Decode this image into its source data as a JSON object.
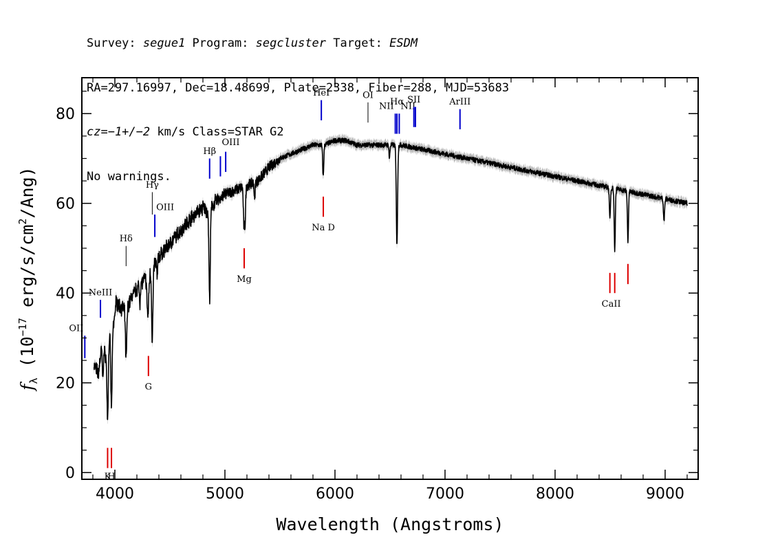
{
  "header": {
    "line1": [
      {
        "text": "Survey: ",
        "italic": false
      },
      {
        "text": "segue1",
        "italic": true
      },
      {
        "text": " Program: ",
        "italic": false
      },
      {
        "text": "segcluster",
        "italic": true
      },
      {
        "text": " Target: ",
        "italic": false
      },
      {
        "text": "ESDM",
        "italic": true
      }
    ],
    "line2": "RA=297.16997, Dec=18.48699, Plate=2338, Fiber=288, MJD=53683",
    "line3": [
      {
        "text": "cz=−1+/−2",
        "italic": true
      },
      {
        "text": " km/s Class=STAR G2",
        "italic": false
      }
    ],
    "line4": "No warnings."
  },
  "chart_data": {
    "type": "line",
    "xlabel": "Wavelength (Angstroms)",
    "ylabel": "f_λ (10^-17 erg/s/cm^2/Ang)",
    "ylabel_parts": {
      "f": "f",
      "sub": "λ",
      "pre": " (10",
      "sup1": "−17",
      "mid": " erg/s/cm",
      "sup2": "2",
      "post": "/Ang)"
    },
    "xlim": [
      3700,
      9300
    ],
    "ylim": [
      -1.5,
      88
    ],
    "xticks": [
      4000,
      5000,
      6000,
      7000,
      8000,
      9000
    ],
    "yticks": [
      0,
      20,
      40,
      60,
      80
    ],
    "grid": false,
    "colors": {
      "spectrum": "#000000",
      "error": "#b4b4b4",
      "emission": "#0000cc",
      "absorption": "#dd0000"
    },
    "spectrum_anchors": {
      "x": [
        3810,
        3850,
        3880,
        3900,
        3920,
        3950,
        3990,
        4010,
        4050,
        4100,
        4150,
        4200,
        4300,
        4400,
        4500,
        4600,
        4700,
        4800,
        4850,
        4900,
        5000,
        5100,
        5200,
        5300,
        5400,
        5500,
        5600,
        5700,
        5800,
        5900,
        6000,
        6100,
        6200,
        6400,
        6600,
        6800,
        7000,
        7200,
        7400,
        7600,
        7800,
        8000,
        8200,
        8400,
        8600,
        8800,
        9000,
        9200
      ],
      "y": [
        24,
        22,
        28,
        27,
        26,
        30,
        33,
        38,
        37,
        36,
        39,
        41,
        44,
        48,
        51,
        54,
        57,
        59,
        58,
        60,
        62,
        63,
        64,
        65,
        68,
        70,
        71,
        72,
        73,
        73,
        74,
        74,
        73,
        73,
        73,
        72,
        71,
        70,
        69,
        68,
        67,
        66,
        65,
        64,
        63,
        62,
        61,
        60
      ]
    },
    "absorption_features": [
      {
        "x": 3934,
        "depth": 16,
        "width": 6
      },
      {
        "x": 3969,
        "depth": 17,
        "width": 6
      },
      {
        "x": 3890,
        "depth": 6,
        "width": 5
      },
      {
        "x": 4102,
        "depth": 11,
        "width": 6
      },
      {
        "x": 4227,
        "depth": 4,
        "width": 4
      },
      {
        "x": 4300,
        "depth": 9,
        "width": 8
      },
      {
        "x": 4340,
        "depth": 16,
        "width": 6
      },
      {
        "x": 4384,
        "depth": 4,
        "width": 4
      },
      {
        "x": 4861,
        "depth": 20,
        "width": 6
      },
      {
        "x": 5172,
        "depth": 8,
        "width": 5
      },
      {
        "x": 5183,
        "depth": 8,
        "width": 5
      },
      {
        "x": 5270,
        "depth": 4,
        "width": 4
      },
      {
        "x": 5893,
        "depth": 7,
        "width": 5
      },
      {
        "x": 6563,
        "depth": 22,
        "width": 6
      },
      {
        "x": 6495,
        "depth": 3,
        "width": 4
      },
      {
        "x": 8498,
        "depth": 7,
        "width": 5
      },
      {
        "x": 8542,
        "depth": 14,
        "width": 5
      },
      {
        "x": 8662,
        "depth": 11,
        "width": 5
      },
      {
        "x": 8990,
        "depth": 5,
        "width": 5
      }
    ],
    "emission_lines": [
      {
        "label": "OII",
        "x": 3727,
        "y0": 25.5,
        "y1": 30.5,
        "label_y": 31.5,
        "label_anchor": "end"
      },
      {
        "label": "NeIII",
        "x": 3869,
        "y0": 34.5,
        "y1": 38.5,
        "label_y": 39.5,
        "label_anchor": "middle"
      },
      {
        "label": "Hδ",
        "x": 4102,
        "y0": 46,
        "y1": 50.5,
        "label_y": 51.5,
        "label_anchor": "middle"
      },
      {
        "label": "Hγ",
        "x": 4340,
        "y0": 57.5,
        "y1": 62.5,
        "label_y": 63.5,
        "label_anchor": "middle"
      },
      {
        "label": "OIII",
        "x": 4363,
        "y0": 52.5,
        "y1": 57.5,
        "label_y": 58.5,
        "label_anchor": "start"
      },
      {
        "label": "Hβ",
        "x": 4861,
        "y0": 65.5,
        "y1": 70,
        "label_y": 71,
        "label_anchor": "middle"
      },
      {
        "label": "OIII",
        "x": 4959,
        "y0": 66,
        "y1": 70.5,
        "label_y": 73,
        "label_anchor": "start"
      },
      {
        "label": "",
        "x": 5007,
        "y0": 67,
        "y1": 71.5,
        "label_y": 0,
        "label_anchor": "start"
      },
      {
        "label": "HeI",
        "x": 5876,
        "y0": 78.5,
        "y1": 83,
        "label_y": 84,
        "label_anchor": "middle"
      },
      {
        "label": "OI",
        "x": 6300,
        "y0": 78,
        "y1": 82.5,
        "label_y": 83.5,
        "label_anchor": "middle"
      },
      {
        "label": "NII",
        "x": 6548,
        "y0": 75.5,
        "y1": 80,
        "label_y": 81,
        "label_anchor": "end"
      },
      {
        "label": "Hα",
        "x": 6563,
        "y0": 75.5,
        "y1": 80,
        "label_y": 82,
        "label_anchor": "middle"
      },
      {
        "label": "NII",
        "x": 6584,
        "y0": 75.5,
        "y1": 80,
        "label_y": 81,
        "label_anchor": "start"
      },
      {
        "label": "SII",
        "x": 6717,
        "y0": 77,
        "y1": 81.5,
        "label_y": 82.5,
        "label_anchor": "middle"
      },
      {
        "label": "",
        "x": 6731,
        "y0": 77,
        "y1": 81.5,
        "label_y": 0,
        "label_anchor": "middle"
      },
      {
        "label": "ArIII",
        "x": 7136,
        "y0": 76.5,
        "y1": 81,
        "label_y": 82,
        "label_anchor": "middle"
      }
    ],
    "absorption_lines": [
      {
        "label": "K",
        "x": 3934,
        "y0": 1,
        "y1": 5.5,
        "label_y": -1.5,
        "label_anchor": "middle"
      },
      {
        "label": "H",
        "x": 3969,
        "y0": 1,
        "y1": 5.5,
        "label_y": -1.5,
        "label_anchor": "middle"
      },
      {
        "label": "G",
        "x": 4305,
        "y0": 21.5,
        "y1": 26,
        "label_y": 18.5,
        "label_anchor": "middle"
      },
      {
        "label": "Mg",
        "x": 5175,
        "y0": 45.5,
        "y1": 50,
        "label_y": 42.5,
        "label_anchor": "middle"
      },
      {
        "label": "Na D",
        "x": 5894,
        "y0": 57,
        "y1": 61.5,
        "label_y": 54,
        "label_anchor": "middle"
      },
      {
        "label": "CaII",
        "x": 8498,
        "y0": 40,
        "y1": 44.5,
        "label_y": 37,
        "label_anchor": "start"
      },
      {
        "label": "",
        "x": 8542,
        "y0": 40,
        "y1": 44.5,
        "label_y": 0,
        "label_anchor": "middle"
      },
      {
        "label": "",
        "x": 8662,
        "y0": 42,
        "y1": 46.5,
        "label_y": 0,
        "label_anchor": "middle"
      }
    ]
  }
}
